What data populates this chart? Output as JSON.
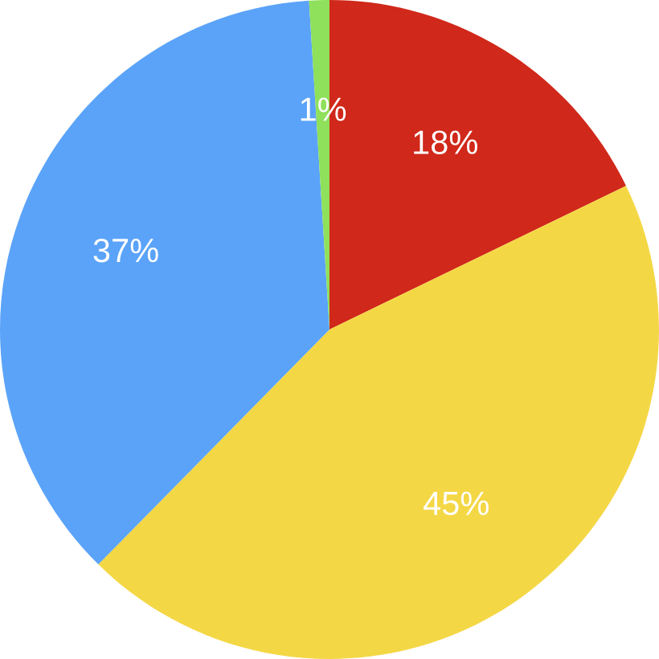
{
  "chart_data": {
    "type": "pie",
    "categories": [
      null,
      null,
      null,
      null
    ],
    "values": [
      18,
      45,
      37,
      1
    ],
    "value_labels": [
      "18%",
      "45%",
      "37%",
      "1%"
    ],
    "colors": [
      "#d0281a",
      "#f4d745",
      "#5ba3f8",
      "#8fe05a"
    ]
  }
}
